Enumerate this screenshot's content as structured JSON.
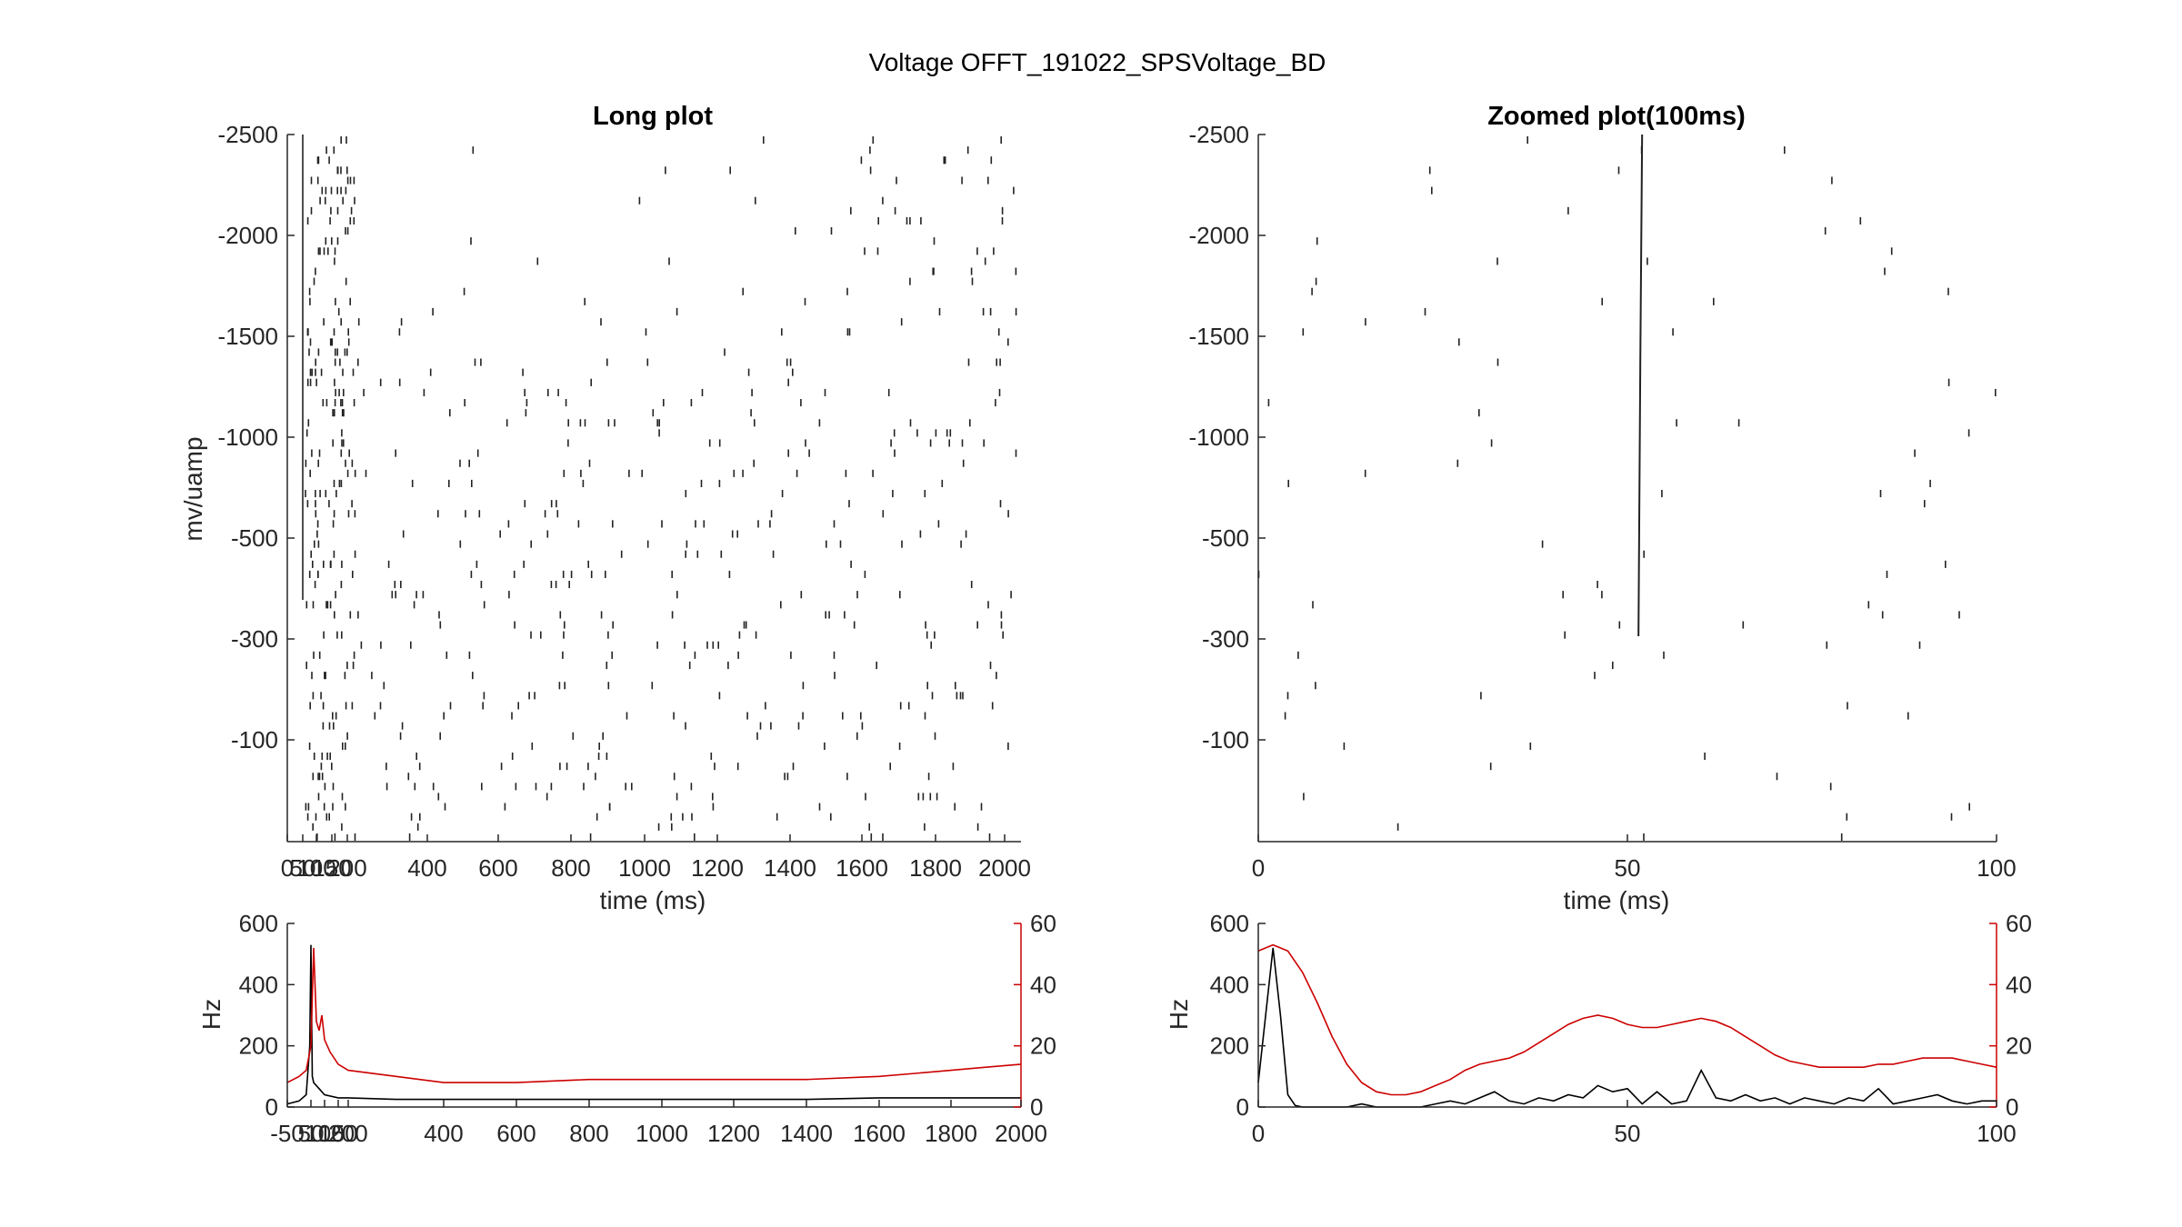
{
  "figure": {
    "title": "Voltage OFFT_191022_SPSVoltage_BD"
  },
  "chart_data": [
    {
      "id": "long-raster",
      "type": "scatter",
      "marker": "vertical-tick",
      "title": "Long plot",
      "xlabel": "time (ms)",
      "ylabel": "mv/uamp",
      "xlim": [
        0,
        2050
      ],
      "xticks": [
        0,
        50,
        100,
        150,
        200,
        400,
        600,
        800,
        1000,
        1200,
        1400,
        1600,
        1800,
        2000
      ],
      "xticklabels": [
        "0",
        "50",
        "100",
        "150",
        "200",
        "400",
        "600",
        "800",
        "1000",
        "1200",
        "1400",
        "1600",
        "1800",
        "2000"
      ],
      "yticklabels": [
        "-2500",
        "-2000",
        "-1500",
        "-1000",
        "-500",
        "-300",
        "-100"
      ],
      "trials": 70,
      "ylim_trials": [
        0,
        70
      ],
      "stimulus_line_ms": 50,
      "note": "trial-by-trial spike raster; each tick is one spike"
    },
    {
      "id": "long-rate",
      "type": "line",
      "xlim": [
        -50,
        2000
      ],
      "xticks": [
        -50,
        50,
        100,
        150,
        200,
        400,
        600,
        800,
        1000,
        1200,
        1400,
        1600,
        1800,
        2000
      ],
      "xticklabels": [
        "-50",
        "50",
        "100",
        "150",
        "200",
        "400",
        "600",
        "800",
        "1000",
        "1200",
        "1400",
        "1600",
        "1800",
        "2000"
      ],
      "ylabel": "Hz",
      "ylim": [
        0,
        600
      ],
      "yticks": [
        0,
        200,
        400,
        600
      ],
      "ylim_right": [
        0,
        60
      ],
      "yticks_right": [
        0,
        20,
        40,
        60
      ],
      "series": [
        {
          "axis": "left",
          "color": "#000000",
          "x": [
            -50,
            0,
            30,
            45,
            50,
            55,
            60,
            80,
            100,
            150,
            200,
            300,
            400,
            600,
            800,
            1000,
            1200,
            1400,
            1600,
            1800,
            2000
          ],
          "y": [
            10,
            20,
            40,
            200,
            530,
            100,
            80,
            60,
            40,
            30,
            30,
            25,
            25,
            25,
            25,
            25,
            25,
            25,
            30,
            30,
            30
          ]
        },
        {
          "axis": "right",
          "color": "#cc0000",
          "x": [
            -50,
            0,
            30,
            50,
            60,
            70,
            80,
            90,
            100,
            120,
            150,
            200,
            300,
            400,
            600,
            800,
            1000,
            1200,
            1400,
            1600,
            1700,
            1800,
            1900,
            2000
          ],
          "y": [
            8,
            10,
            12,
            20,
            52,
            28,
            25,
            30,
            22,
            18,
            14,
            12,
            10,
            8,
            8,
            9,
            9,
            9,
            9,
            10,
            11,
            12,
            13,
            14
          ]
        }
      ]
    },
    {
      "id": "zoom-raster",
      "type": "scatter",
      "marker": "vertical-tick",
      "title": "Zoomed plot(100ms)",
      "xlabel": "time (ms)",
      "xlim": [
        0,
        100
      ],
      "xticks": [
        0,
        50,
        100
      ],
      "yticklabels": [
        "-2500",
        "-2000",
        "-1500",
        "-1000",
        "-500",
        "-300",
        "-100"
      ],
      "trials": 70,
      "ylim_trials": [
        0,
        70
      ],
      "stimulus_line_ms": 51.5
    },
    {
      "id": "zoom-rate",
      "type": "line",
      "xlim": [
        0,
        100
      ],
      "xticks": [
        0,
        50,
        100
      ],
      "ylabel": "Hz",
      "ylim": [
        0,
        600
      ],
      "yticks": [
        0,
        200,
        400,
        600
      ],
      "ylim_right": [
        0,
        60
      ],
      "yticks_right": [
        0,
        20,
        40,
        60
      ],
      "series": [
        {
          "axis": "left",
          "color": "#000000",
          "x": [
            0,
            1,
            2,
            3,
            4,
            5,
            6,
            8,
            10,
            12,
            14,
            16,
            18,
            20,
            22,
            24,
            26,
            28,
            30,
            32,
            34,
            36,
            38,
            40,
            42,
            44,
            46,
            48,
            50,
            52,
            54,
            56,
            58,
            60,
            62,
            64,
            66,
            68,
            70,
            72,
            74,
            76,
            78,
            80,
            82,
            84,
            86,
            88,
            90,
            92,
            94,
            96,
            98,
            100
          ],
          "y": [
            80,
            300,
            520,
            300,
            40,
            5,
            0,
            0,
            0,
            0,
            10,
            0,
            0,
            0,
            0,
            10,
            20,
            10,
            30,
            50,
            20,
            10,
            30,
            20,
            40,
            30,
            70,
            50,
            60,
            10,
            50,
            10,
            20,
            120,
            30,
            20,
            40,
            20,
            30,
            10,
            30,
            20,
            10,
            30,
            20,
            60,
            10,
            20,
            30,
            40,
            20,
            10,
            20,
            20
          ]
        },
        {
          "axis": "right",
          "color": "#cc0000",
          "x": [
            0,
            2,
            4,
            6,
            8,
            10,
            12,
            14,
            16,
            18,
            20,
            22,
            24,
            26,
            28,
            30,
            32,
            34,
            36,
            38,
            40,
            42,
            44,
            46,
            48,
            50,
            52,
            54,
            56,
            58,
            60,
            62,
            64,
            66,
            68,
            70,
            72,
            74,
            76,
            78,
            80,
            82,
            84,
            86,
            88,
            90,
            92,
            94,
            96,
            98,
            100
          ],
          "y": [
            51,
            53,
            51,
            44,
            34,
            23,
            14,
            8,
            5,
            4,
            4,
            5,
            7,
            9,
            12,
            14,
            15,
            16,
            18,
            21,
            24,
            27,
            29,
            30,
            29,
            27,
            26,
            26,
            27,
            28,
            29,
            28,
            26,
            23,
            20,
            17,
            15,
            14,
            13,
            13,
            13,
            13,
            14,
            14,
            15,
            16,
            16,
            16,
            15,
            14,
            13
          ]
        }
      ]
    }
  ]
}
